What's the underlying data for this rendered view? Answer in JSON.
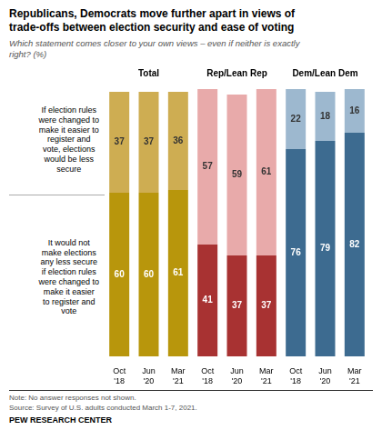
{
  "chart_data": {
    "type": "bar",
    "title": "Republicans, Democrats move further apart in views of\ntrade-offs between election security and ease of voting",
    "subtitle": "Which statement comes closer to your own views – even if neither is exactly\nright? (%)",
    "groups": [
      "Total",
      "Rep/Lean Rep",
      "Dem/Lean Dem"
    ],
    "categories": [
      "Oct\n'18",
      "Jun\n'20",
      "Mar\n'21",
      "Oct\n'18",
      "Jun\n'20",
      "Mar\n'21",
      "Oct\n'18",
      "Jun\n'20",
      "Mar\n'21"
    ],
    "series": [
      {
        "name": "It would not\nmake elections\nany less secure\nif election rules\nwere changed to\nmake it easier\nto register and\nvote",
        "colors": [
          "#B8960C",
          "#B8960C",
          "#B8960C",
          "#A83232",
          "#A83232",
          "#A83232",
          "#3D6B90",
          "#3D6B90",
          "#3D6B90"
        ],
        "values": [
          60,
          60,
          61,
          41,
          37,
          37,
          76,
          79,
          82
        ]
      },
      {
        "name": "If election rules\nwere changed to\nmake it easier to\nregister and\nvote, elections\nwould be less\nsecure",
        "colors": [
          "#CEAD52",
          "#CEAD52",
          "#CEAD52",
          "#E8AAAA",
          "#E8AAAA",
          "#E8AAAA",
          "#9DB8CF",
          "#9DB8CF",
          "#9DB8CF"
        ],
        "values": [
          37,
          37,
          36,
          57,
          59,
          61,
          22,
          18,
          16
        ]
      }
    ],
    "stacked": true,
    "data_labels": true,
    "grid": false,
    "tick_labels": "x",
    "ylim": [
      0,
      100
    ],
    "annotations": [
      "Note: No answer responses not shown.",
      "Source: Survey of U.S. adults conducted March 1-7, 2021.",
      "PEW RESEARCH CENTER"
    ]
  }
}
